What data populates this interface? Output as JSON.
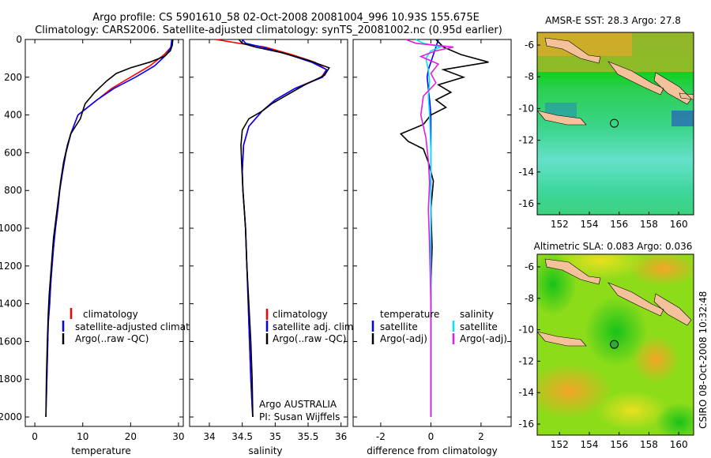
{
  "header": {
    "line1": "Argo profile: CS 5901610_58 02-Oct-2008 20081004_996 10.93S 155.675E",
    "line2": "Climatology: CARS2006. Satellite-adjusted climatology: synTS_20081002.nc (0.95d earlier)"
  },
  "footer_text": "CSIRO 08-Oct-2008 10:32:48",
  "chart_data": [
    {
      "id": "temperature",
      "type": "line",
      "xlabel": "temperature",
      "ylabel": "",
      "xlim": [
        -2,
        31
      ],
      "ylim": [
        2050,
        0
      ],
      "xticks": [
        0,
        10,
        20,
        30
      ],
      "yticks": [
        0,
        200,
        400,
        600,
        800,
        1000,
        1200,
        1400,
        1600,
        1800,
        2000
      ],
      "legend": [
        "climatology",
        "satellite-adjusted climatology",
        "Argo(..raw -QC)"
      ],
      "series": [
        {
          "name": "climatology",
          "color": "#ff0000",
          "x": [
            28.8,
            28.5,
            27,
            24,
            20,
            16,
            13,
            9,
            7.5,
            6.5,
            5.8,
            5.2,
            4.8,
            4.3,
            3.9,
            3.6,
            3.3,
            3.1,
            2.8,
            2.6,
            2.4
          ],
          "y": [
            0,
            40,
            80,
            140,
            200,
            260,
            320,
            400,
            500,
            600,
            700,
            800,
            900,
            1000,
            1100,
            1200,
            1300,
            1400,
            1500,
            1700,
            1900
          ]
        },
        {
          "name": "satellite-adjusted climatology",
          "color": "#0000ff",
          "x": [
            28.6,
            28.4,
            27.5,
            25,
            21,
            16.5,
            13,
            9,
            7.5,
            6.5,
            5.8,
            5.2,
            4.8,
            4.3,
            3.9,
            3.6,
            3.3,
            3.1,
            2.8,
            2.6,
            2.4,
            2.3
          ],
          "y": [
            0,
            40,
            80,
            140,
            200,
            260,
            320,
            400,
            500,
            600,
            700,
            800,
            900,
            1000,
            1100,
            1200,
            1300,
            1400,
            1500,
            1700,
            1900,
            2000
          ]
        },
        {
          "name": "Argo(..raw -QC)",
          "color": "#000000",
          "x": [
            28.8,
            28.7,
            28.3,
            27,
            24,
            20,
            17,
            15,
            12.5,
            10.5,
            10,
            9.5,
            8.5,
            7.5,
            6.8,
            6,
            5.4,
            4.9,
            4.4,
            3.9,
            3.6,
            3.3,
            3.0,
            2.8,
            2.6,
            2.4,
            2.3
          ],
          "y": [
            0,
            30,
            60,
            90,
            120,
            150,
            180,
            220,
            280,
            340,
            380,
            420,
            460,
            500,
            560,
            650,
            750,
            850,
            950,
            1050,
            1150,
            1250,
            1350,
            1450,
            1600,
            1800,
            2000
          ]
        }
      ]
    },
    {
      "id": "salinity",
      "type": "line",
      "xlabel": "salinity",
      "ylabel": "",
      "xlim": [
        33.7,
        36.1
      ],
      "ylim": [
        2050,
        0
      ],
      "xticks": [
        34,
        34.5,
        35,
        35.5,
        36
      ],
      "yticks": [
        0,
        200,
        400,
        600,
        800,
        1000,
        1200,
        1400,
        1600,
        1800,
        2000
      ],
      "legend": [
        "climatology",
        "satellite adj. clim.",
        "Argo(..raw -QC)"
      ],
      "annotations": [
        "Argo AUSTRALIA",
        "PI: Susan Wijffels"
      ],
      "series": [
        {
          "name": "climatology",
          "color": "#ff0000",
          "x": [
            34.1,
            34.45,
            34.85,
            35.25,
            35.6,
            35.78,
            35.7,
            35.3,
            35.0,
            34.8,
            34.6,
            34.52,
            34.5,
            34.51,
            34.53,
            34.55,
            34.57,
            34.59,
            34.61,
            34.63,
            34.65,
            34.66
          ],
          "y": [
            0,
            20,
            40,
            80,
            120,
            160,
            200,
            260,
            320,
            380,
            460,
            560,
            700,
            800,
            900,
            1000,
            1200,
            1400,
            1600,
            1800,
            1950,
            2000
          ]
        },
        {
          "name": "satellite adj. clim.",
          "color": "#0000ff",
          "x": [
            34.5,
            34.55,
            34.8,
            35.2,
            35.55,
            35.78,
            35.72,
            35.3,
            35.0,
            34.8,
            34.6,
            34.52,
            34.5,
            34.51,
            34.53,
            34.55,
            34.57,
            34.59,
            34.61,
            34.63,
            34.65,
            34.66
          ],
          "y": [
            0,
            20,
            40,
            80,
            120,
            160,
            200,
            260,
            320,
            380,
            460,
            560,
            700,
            800,
            900,
            1000,
            1200,
            1400,
            1600,
            1800,
            1950,
            2000
          ]
        },
        {
          "name": "Argo(..raw -QC)",
          "color": "#000000",
          "x": [
            34.45,
            34.5,
            34.7,
            35.1,
            35.5,
            35.82,
            35.75,
            35.45,
            35.2,
            34.95,
            34.8,
            34.6,
            34.5,
            34.48,
            34.49,
            34.51,
            34.53,
            34.55,
            34.57,
            34.6,
            34.63,
            34.65,
            34.66
          ],
          "y": [
            0,
            20,
            40,
            70,
            110,
            150,
            190,
            240,
            290,
            340,
            380,
            420,
            480,
            560,
            650,
            800,
            900,
            1000,
            1200,
            1400,
            1600,
            1800,
            2000
          ]
        }
      ]
    },
    {
      "id": "difference",
      "type": "line",
      "xlabel": "difference from climatology",
      "ylabel": "",
      "xlim": [
        -3.1,
        3.2
      ],
      "ylim": [
        2050,
        0
      ],
      "xticks": [
        -2,
        0,
        2
      ],
      "yticks": [
        0,
        200,
        400,
        600,
        800,
        1000,
        1200,
        1400,
        1600,
        1800,
        2000
      ],
      "legend": {
        "temperature": {
          "heading": "temperature",
          "items": [
            "satellite",
            "Argo(-adj)"
          ]
        },
        "salinity": {
          "heading": "salinity",
          "items": [
            "satellite",
            "Argo(-adj)"
          ]
        }
      },
      "series": [
        {
          "name": "temperature satellite",
          "color": "#0000ff",
          "x": [
            0.3,
            0.2,
            0.1,
            0.0,
            -0.1,
            -0.15,
            -0.1,
            -0.05,
            0.0,
            0.0,
            0.0,
            0.0,
            0.0
          ],
          "y": [
            0,
            40,
            80,
            120,
            160,
            200,
            260,
            320,
            400,
            600,
            800,
            1200,
            2000
          ]
        },
        {
          "name": "temperature Argo(-adj)",
          "color": "#000000",
          "x": [
            0.2,
            0.5,
            1.2,
            2.3,
            0.5,
            1.3,
            0.3,
            0.8,
            0.2,
            0.6,
            0.0,
            -0.3,
            -1.2,
            -0.9,
            -0.3,
            -0.1,
            0.1,
            0.0,
            0.05,
            0.0,
            0.0,
            0.0,
            0.0
          ],
          "y": [
            0,
            40,
            80,
            120,
            160,
            200,
            240,
            280,
            320,
            360,
            400,
            450,
            500,
            540,
            580,
            650,
            750,
            900,
            1100,
            1300,
            1500,
            1800,
            2000
          ]
        },
        {
          "name": "salinity satellite",
          "color": "#00e5ff",
          "x": [
            -0.6,
            -0.3,
            0.4,
            0.0,
            -0.2,
            -0.1,
            -0.05,
            -0.1,
            -0.05,
            0.0,
            0.0,
            0.0,
            0.0
          ],
          "y": [
            0,
            20,
            40,
            60,
            100,
            160,
            220,
            300,
            400,
            600,
            900,
            1300,
            2000
          ]
        },
        {
          "name": "salinity Argo(-adj)",
          "color": "#e020e0",
          "x": [
            -1.0,
            -0.6,
            0.9,
            0.2,
            -0.4,
            0.3,
            0.0,
            0.2,
            -0.3,
            -0.4,
            -0.2,
            -0.1,
            -0.05,
            -0.1,
            -0.05,
            0.0,
            0.0,
            0.0
          ],
          "y": [
            0,
            20,
            40,
            60,
            90,
            130,
            180,
            230,
            300,
            400,
            520,
            640,
            760,
            900,
            1100,
            1400,
            1700,
            2000
          ]
        }
      ]
    },
    {
      "id": "sst_map",
      "type": "heatmap",
      "title": "AMSR-E SST: 28.3 Argo: 27.8",
      "xlim": [
        150.5,
        161
      ],
      "ylim": [
        -16.7,
        -5.2
      ],
      "xticks": [
        152,
        154,
        156,
        158,
        160
      ],
      "yticks": [
        -6,
        -8,
        -10,
        -12,
        -14,
        -16
      ],
      "marker": {
        "lon": 155.675,
        "lat": -10.93
      }
    },
    {
      "id": "sla_map",
      "type": "heatmap",
      "title": "Altimetric SLA: 0.083 Argo: 0.036",
      "xlim": [
        150.5,
        161
      ],
      "ylim": [
        -16.7,
        -5.2
      ],
      "xticks": [
        152,
        154,
        156,
        158,
        160
      ],
      "yticks": [
        -6,
        -8,
        -10,
        -12,
        -14,
        -16
      ],
      "marker": {
        "lon": 155.675,
        "lat": -10.93
      }
    }
  ]
}
